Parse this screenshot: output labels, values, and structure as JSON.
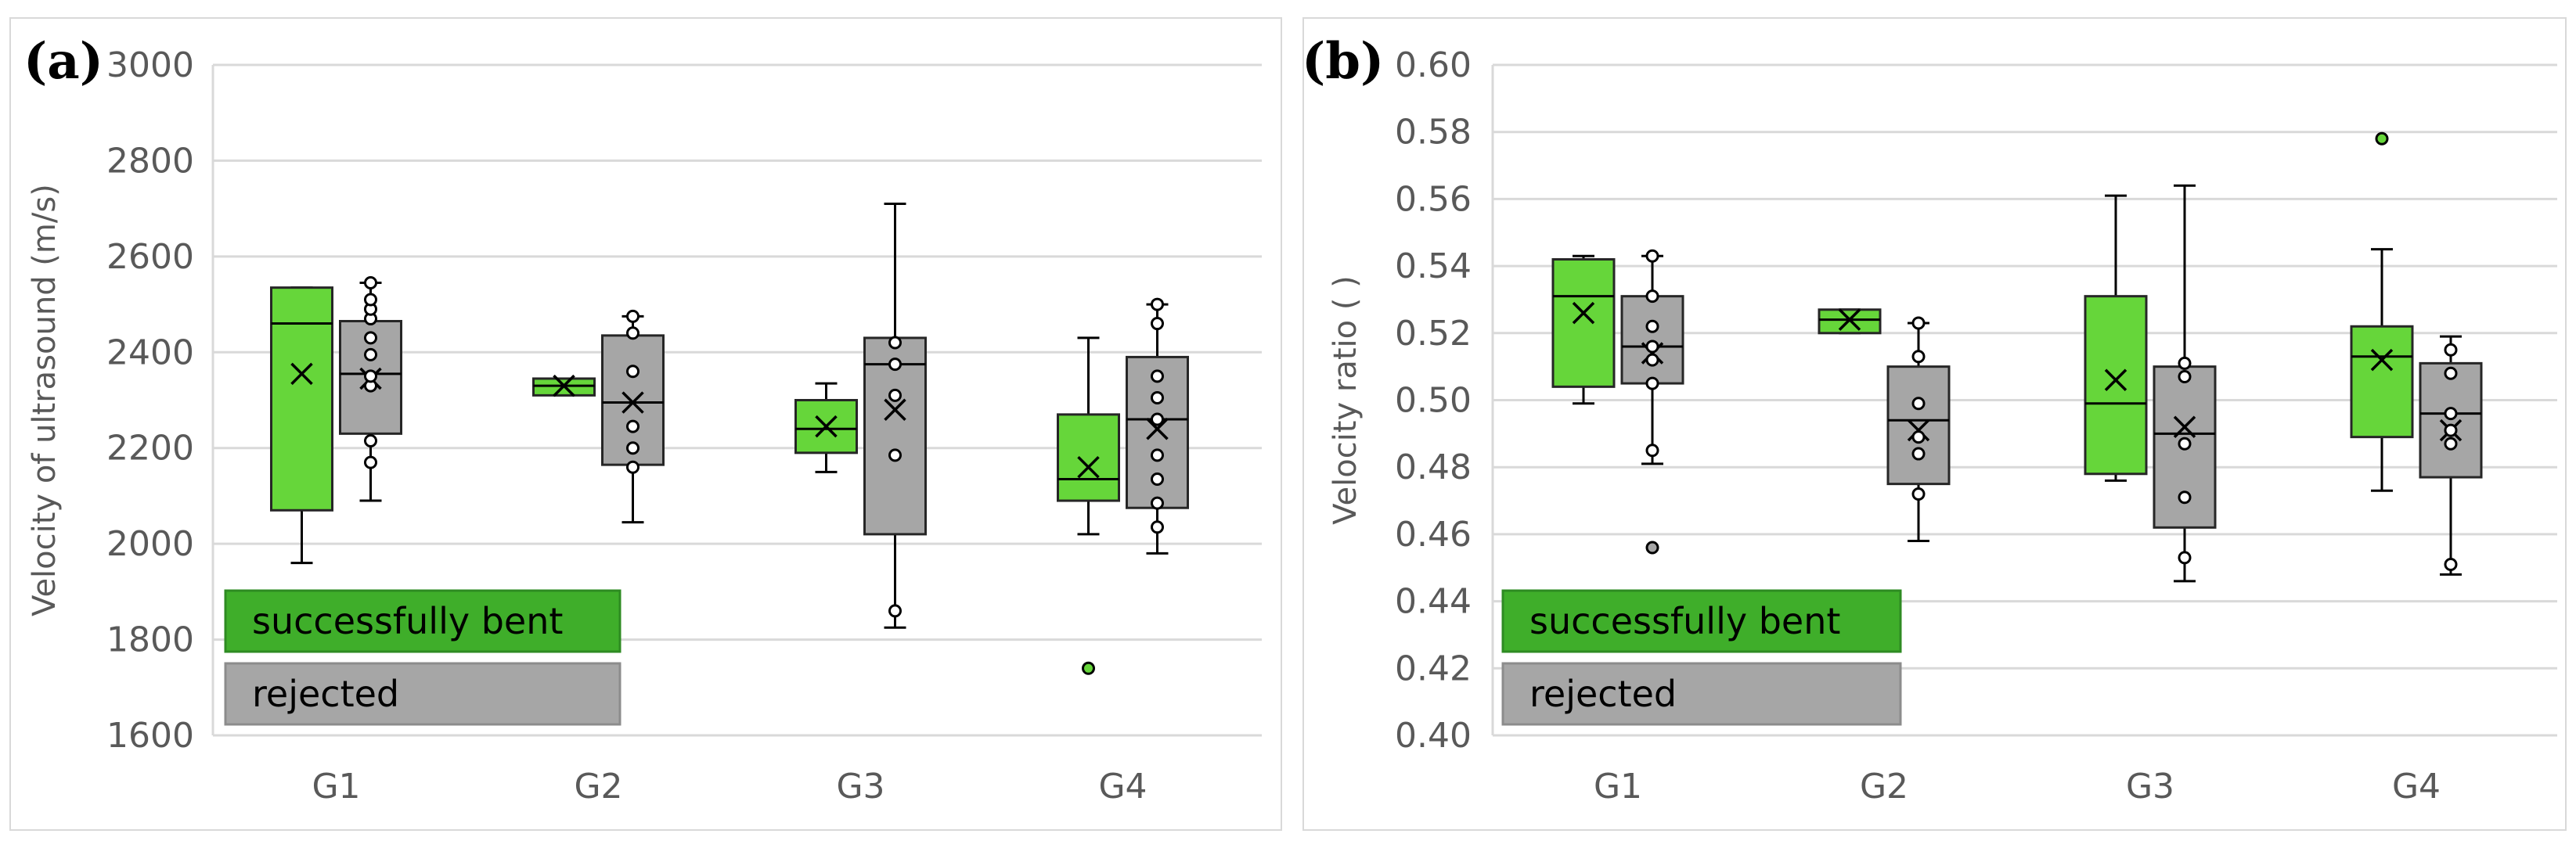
{
  "colors": {
    "successfully_bent": "#66d63a",
    "rejected": "#a6a6a6",
    "legend_bent": "#3fae2a",
    "legend_bent_border": "#2e8b22",
    "legend_rejected": "#a6a6a6",
    "grid": "#d9d9d9",
    "axis_text": "#595959"
  },
  "chart_data": [
    {
      "type": "box",
      "panel_label": "(a)",
      "ylabel": "Velocity of ultrasound (m/s)",
      "ylim": [
        1600,
        3000
      ],
      "yticks": [
        1600,
        1800,
        2000,
        2200,
        2400,
        2600,
        2800,
        3000
      ],
      "categories": [
        "G1",
        "G2",
        "G3",
        "G4"
      ],
      "legend": [
        "successfully bent",
        "rejected"
      ],
      "series": [
        {
          "name": "successfully bent",
          "boxes": [
            {
              "q1": 2070,
              "median": 2460,
              "q3": 2535,
              "whisker_low": 1960,
              "whisker_high": 2535,
              "mean": 2355,
              "points": [],
              "outliers": []
            },
            {
              "q1": 2310,
              "median": 2330,
              "q3": 2345,
              "whisker_low": 2310,
              "whisker_high": 2345,
              "mean": 2330,
              "points": [],
              "outliers": []
            },
            {
              "q1": 2190,
              "median": 2240,
              "q3": 2300,
              "whisker_low": 2150,
              "whisker_high": 2335,
              "mean": 2245,
              "points": [],
              "outliers": []
            },
            {
              "q1": 2090,
              "median": 2135,
              "q3": 2270,
              "whisker_low": 2020,
              "whisker_high": 2430,
              "mean": 2160,
              "points": [],
              "outliers": [
                1740
              ]
            }
          ]
        },
        {
          "name": "rejected",
          "boxes": [
            {
              "q1": 2230,
              "median": 2355,
              "q3": 2465,
              "whisker_low": 2090,
              "whisker_high": 2545,
              "mean": 2345,
              "points": [
                2170,
                2215,
                2330,
                2350,
                2395,
                2430,
                2470,
                2490,
                2510,
                2545
              ],
              "outliers": []
            },
            {
              "q1": 2165,
              "median": 2295,
              "q3": 2435,
              "whisker_low": 2045,
              "whisker_high": 2475,
              "mean": 2295,
              "points": [
                2160,
                2200,
                2245,
                2360,
                2440,
                2475
              ],
              "outliers": []
            },
            {
              "q1": 2020,
              "median": 2375,
              "q3": 2430,
              "whisker_low": 1825,
              "whisker_high": 2710,
              "mean": 2280,
              "points": [
                1860,
                2185,
                2310,
                2375,
                2420
              ],
              "outliers": []
            },
            {
              "q1": 2075,
              "median": 2260,
              "q3": 2390,
              "whisker_low": 1980,
              "whisker_high": 2500,
              "mean": 2240,
              "points": [
                2035,
                2085,
                2135,
                2185,
                2260,
                2305,
                2350,
                2460,
                2500
              ],
              "outliers": []
            }
          ]
        }
      ]
    },
    {
      "type": "box",
      "panel_label": "(b)",
      "ylabel": "Velocity ratio ( )",
      "ylim": [
        0.4,
        0.6
      ],
      "yticks": [
        0.4,
        0.42,
        0.44,
        0.46,
        0.48,
        0.5,
        0.52,
        0.54,
        0.56,
        0.58,
        0.6
      ],
      "categories": [
        "G1",
        "G2",
        "G3",
        "G4"
      ],
      "legend": [
        "successfully bent",
        "rejected"
      ],
      "series": [
        {
          "name": "successfully bent",
          "boxes": [
            {
              "q1": 0.504,
              "median": 0.531,
              "q3": 0.542,
              "whisker_low": 0.499,
              "whisker_high": 0.543,
              "mean": 0.526,
              "points": [],
              "outliers": []
            },
            {
              "q1": 0.52,
              "median": 0.524,
              "q3": 0.527,
              "whisker_low": 0.52,
              "whisker_high": 0.527,
              "mean": 0.524,
              "points": [],
              "outliers": []
            },
            {
              "q1": 0.478,
              "median": 0.499,
              "q3": 0.531,
              "whisker_low": 0.476,
              "whisker_high": 0.561,
              "mean": 0.506,
              "points": [],
              "outliers": []
            },
            {
              "q1": 0.489,
              "median": 0.513,
              "q3": 0.522,
              "whisker_low": 0.473,
              "whisker_high": 0.545,
              "mean": 0.512,
              "points": [],
              "outliers": [
                0.578
              ]
            }
          ]
        },
        {
          "name": "rejected",
          "boxes": [
            {
              "q1": 0.505,
              "median": 0.516,
              "q3": 0.531,
              "whisker_low": 0.481,
              "whisker_high": 0.543,
              "mean": 0.514,
              "points": [
                0.485,
                0.505,
                0.512,
                0.516,
                0.522,
                0.531,
                0.543
              ],
              "outliers": [
                0.456
              ]
            },
            {
              "q1": 0.475,
              "median": 0.494,
              "q3": 0.51,
              "whisker_low": 0.458,
              "whisker_high": 0.523,
              "mean": 0.491,
              "points": [
                0.472,
                0.484,
                0.489,
                0.499,
                0.513,
                0.523
              ],
              "outliers": []
            },
            {
              "q1": 0.462,
              "median": 0.49,
              "q3": 0.51,
              "whisker_low": 0.446,
              "whisker_high": 0.564,
              "mean": 0.492,
              "points": [
                0.453,
                0.471,
                0.487,
                0.507,
                0.511
              ],
              "outliers": []
            },
            {
              "q1": 0.477,
              "median": 0.496,
              "q3": 0.511,
              "whisker_low": 0.448,
              "whisker_high": 0.519,
              "mean": 0.491,
              "points": [
                0.451,
                0.487,
                0.491,
                0.496,
                0.508,
                0.515
              ],
              "outliers": []
            }
          ]
        }
      ]
    }
  ]
}
